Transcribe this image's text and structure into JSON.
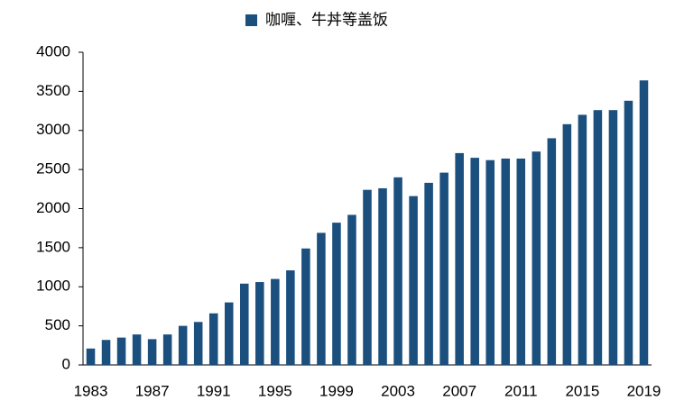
{
  "chart_data": {
    "type": "bar",
    "categories": [
      "1983",
      null,
      null,
      null,
      "1987",
      null,
      null,
      null,
      "1991",
      null,
      null,
      null,
      "1995",
      null,
      null,
      null,
      "1999",
      null,
      null,
      null,
      "2003",
      null,
      null,
      null,
      "2007",
      null,
      null,
      null,
      "2011",
      null,
      null,
      null,
      "2015",
      null,
      null,
      null,
      "2019"
    ],
    "series": [
      {
        "name": "咖喱、牛丼等盖饭",
        "color": "#1b4f7e",
        "values": [
          210,
          320,
          350,
          390,
          330,
          390,
          500,
          550,
          660,
          800,
          1040,
          1060,
          1100,
          1210,
          1490,
          1690,
          1820,
          1920,
          2240,
          2260,
          2400,
          2160,
          2330,
          2460,
          2710,
          2650,
          2620,
          2640,
          2640,
          2730,
          2900,
          3080,
          3200,
          3260,
          3260,
          3380,
          3640
        ]
      }
    ],
    "ylim": [
      0,
      4000
    ],
    "yticks": [
      0,
      500,
      1000,
      1500,
      2000,
      2500,
      3000,
      3500,
      4000
    ],
    "legend": "top"
  }
}
